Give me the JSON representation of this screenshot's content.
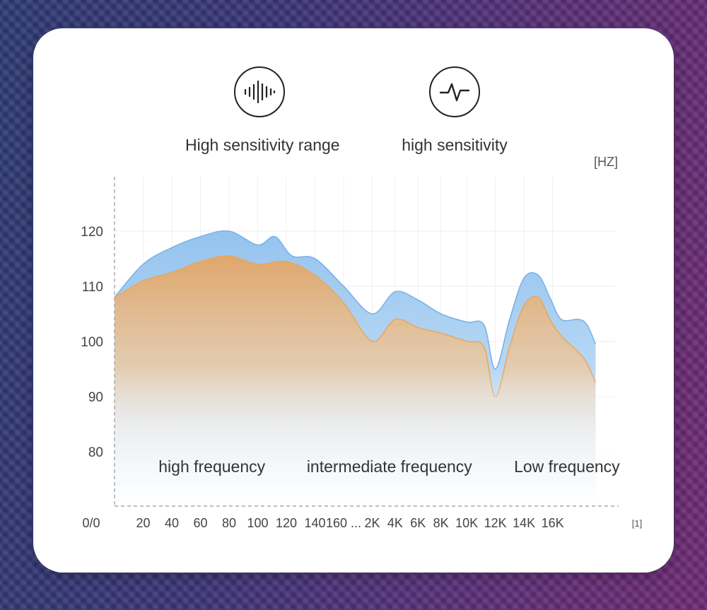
{
  "features": [
    {
      "label": "High sensitivity range",
      "icon": "sound-wave-icon"
    },
    {
      "label": "high sensitivity",
      "icon": "pulse-wave-icon"
    }
  ],
  "chart_data": {
    "type": "area",
    "unit_label": "[HZ]",
    "x_unit_label": "[1]",
    "origin_label": "0/0",
    "y_ticks": [
      {
        "label": "120",
        "value": 120
      },
      {
        "label": "110",
        "value": 110
      },
      {
        "label": "100",
        "value": 100
      },
      {
        "label": "90",
        "value": 90
      },
      {
        "label": "80",
        "value": 80
      }
    ],
    "x_ticks": [
      {
        "label": "20",
        "pos": 1
      },
      {
        "label": "40",
        "pos": 2
      },
      {
        "label": "60",
        "pos": 3
      },
      {
        "label": "80",
        "pos": 4
      },
      {
        "label": "100",
        "pos": 5
      },
      {
        "label": "120",
        "pos": 6
      },
      {
        "label": "140",
        "pos": 7
      },
      {
        "label": "160 ...",
        "pos": 8
      },
      {
        "label": "2K",
        "pos": 9
      },
      {
        "label": "4K",
        "pos": 9.8
      },
      {
        "label": "6K",
        "pos": 10.6
      },
      {
        "label": "8K",
        "pos": 11.4
      },
      {
        "label": "10K",
        "pos": 12.3
      },
      {
        "label": "12K",
        "pos": 13.3
      },
      {
        "label": "14K",
        "pos": 14.3
      },
      {
        "label": "16K",
        "pos": 15.3
      }
    ],
    "regions": [
      {
        "label": "high frequency",
        "pos": 3.4
      },
      {
        "label": "intermediate frequency",
        "pos": 9.6
      },
      {
        "label": "Low frequency",
        "pos": 15.8
      }
    ],
    "series": [
      {
        "color": "#7ab3e6",
        "points": [
          [
            0,
            108
          ],
          [
            1,
            114
          ],
          [
            2,
            117
          ],
          [
            3,
            119
          ],
          [
            4,
            120
          ],
          [
            5,
            117.5
          ],
          [
            5.6,
            119
          ],
          [
            6.2,
            115.5
          ],
          [
            7,
            115
          ],
          [
            8,
            110
          ],
          [
            9,
            105
          ],
          [
            9.8,
            109
          ],
          [
            10.6,
            107.5
          ],
          [
            11.4,
            105
          ],
          [
            12.3,
            103.5
          ],
          [
            12.9,
            103
          ],
          [
            13.3,
            95
          ],
          [
            13.8,
            104
          ],
          [
            14.3,
            111.5
          ],
          [
            14.8,
            112
          ],
          [
            15.2,
            108
          ],
          [
            15.6,
            104
          ],
          [
            16.2,
            104
          ],
          [
            16.5,
            103
          ],
          [
            16.8,
            99.5
          ]
        ]
      },
      {
        "color": "#e8a85e",
        "points": [
          [
            0,
            108
          ],
          [
            1,
            111
          ],
          [
            2,
            112.5
          ],
          [
            3,
            114.5
          ],
          [
            4,
            115.5
          ],
          [
            5,
            114
          ],
          [
            6,
            114.5
          ],
          [
            7,
            112
          ],
          [
            8,
            107
          ],
          [
            9,
            100
          ],
          [
            9.8,
            104
          ],
          [
            10.6,
            102.5
          ],
          [
            11.4,
            101.5
          ],
          [
            12.3,
            100
          ],
          [
            12.9,
            99
          ],
          [
            13.3,
            90
          ],
          [
            13.8,
            99
          ],
          [
            14.3,
            106.5
          ],
          [
            14.8,
            108
          ],
          [
            15.2,
            104
          ],
          [
            15.6,
            101
          ],
          [
            16.2,
            98
          ],
          [
            16.5,
            96
          ],
          [
            16.8,
            92.5
          ]
        ]
      }
    ]
  }
}
